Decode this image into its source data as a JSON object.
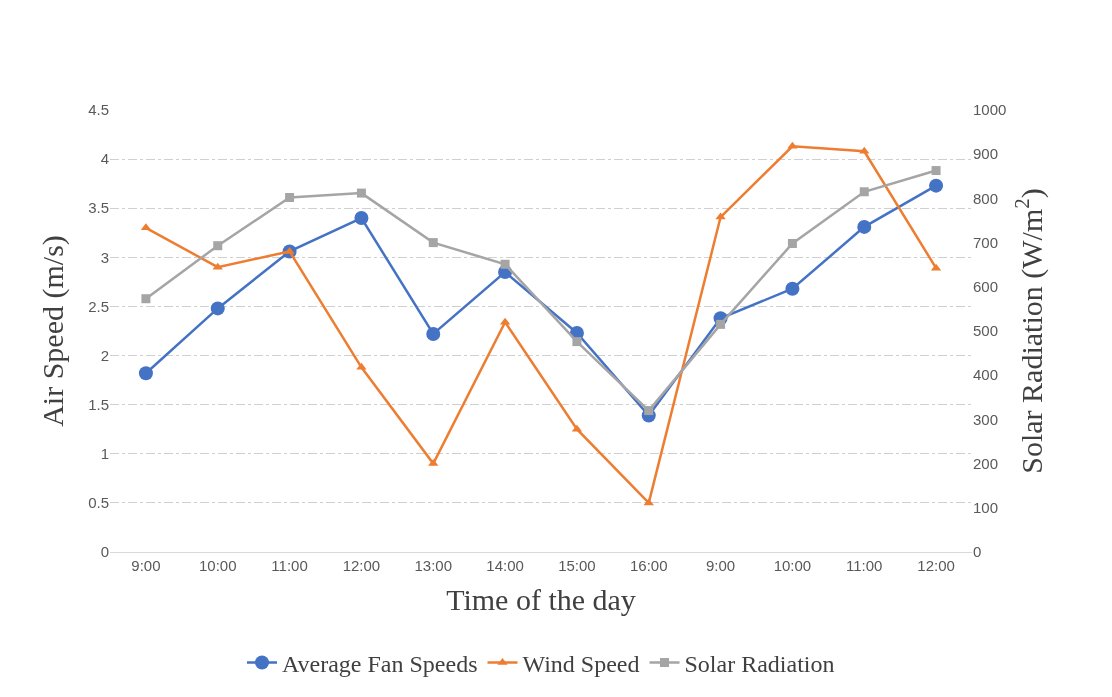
{
  "chart_data": {
    "type": "line",
    "xlabel": "Time of the day",
    "ylabel": "Air Speed (m/s)",
    "y2label": "Solar Radiation (W/m$^{2}$)",
    "categories": [
      "9:00",
      "10:00",
      "11:00",
      "12:00",
      "13:00",
      "14:00",
      "15:00",
      "16:00",
      "9:00",
      "10:00",
      "11:00",
      "12:00"
    ],
    "series": [
      {
        "name": "Average Fan Speeds",
        "color": "#4472c4",
        "marker": "circle",
        "values": [
          1.82,
          2.48,
          3.06,
          3.4,
          2.22,
          2.85,
          2.23,
          1.39,
          2.38,
          2.68,
          3.31,
          3.73
        ]
      },
      {
        "name": "Wind Speed",
        "color": "#ed7d31",
        "marker": "triangle",
        "values": [
          3.3,
          2.9,
          3.06,
          1.88,
          0.9,
          2.34,
          1.25,
          0.5,
          3.41,
          4.13,
          4.08,
          2.89
        ]
      },
      {
        "name": "Solar Radiation",
        "color": "#a5a5a5",
        "marker": "square",
        "axis": "y2",
        "values": [
          573,
          693,
          802,
          812,
          700,
          651,
          476,
          320,
          515,
          698,
          815,
          863
        ]
      }
    ],
    "ylim": [
      0,
      4.5
    ],
    "yticks": [
      0,
      0.5,
      1,
      1.5,
      2,
      2.5,
      3,
      3.5,
      4,
      4.5
    ],
    "y2lim": [
      0,
      1000
    ],
    "y2ticks": [
      0,
      100,
      200,
      300,
      400,
      500,
      600,
      700,
      800,
      900,
      1000
    ],
    "grid": "y",
    "legend": "bottom",
    "line_style": "solid"
  }
}
